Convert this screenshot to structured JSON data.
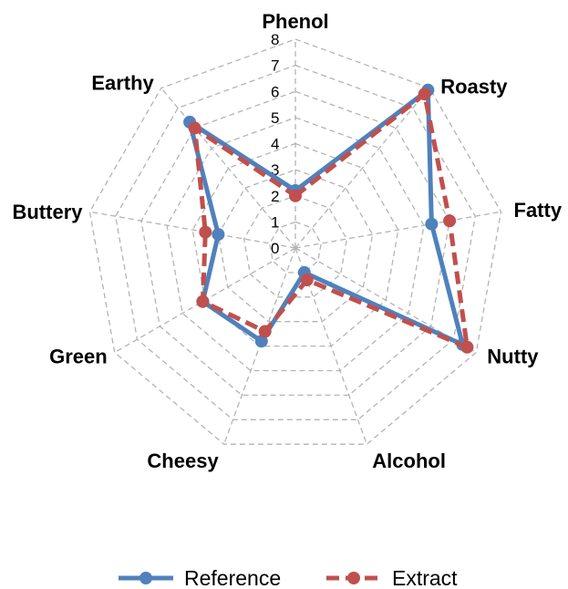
{
  "chart_data": {
    "type": "radar",
    "axes": [
      "Phenol",
      "Roasty",
      "Fatty",
      "Nutty",
      "Alcohol",
      "Cheesy",
      "Green",
      "Buttery",
      "Earthy"
    ],
    "r_ticks": [
      "0",
      "1",
      "2",
      "3",
      "4",
      "5",
      "6",
      "7",
      "8"
    ],
    "r_range": [
      0,
      8
    ],
    "grid": true,
    "legend_position": "bottom",
    "series": [
      {
        "name": "Reference",
        "values": [
          2.2,
          7.9,
          5.3,
          7.4,
          1.0,
          3.8,
          4.1,
          3.0,
          6.3
        ],
        "color": "#4f81bd",
        "line_style": "solid",
        "marker": "circle"
      },
      {
        "name": "Extract",
        "values": [
          2.0,
          7.7,
          6.0,
          7.6,
          1.3,
          3.4,
          4.1,
          3.5,
          6.0
        ],
        "color": "#c0504d",
        "line_style": "dashed",
        "marker": "circle"
      }
    ]
  }
}
